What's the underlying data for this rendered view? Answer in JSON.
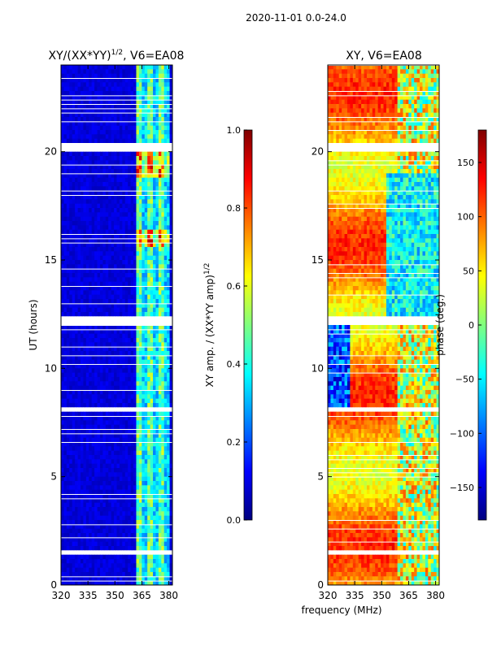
{
  "suptitle": "2020-11-01 0.0-24.0",
  "chart_data": [
    {
      "type": "heatmap",
      "title_prefix": "XY/(XX*YY)",
      "title_exponent": "1/2",
      "title_suffix": ", V6=EA08",
      "xlabel": "",
      "ylabel": "UT (hours)",
      "xlim": [
        320,
        382
      ],
      "ylim": [
        0,
        24
      ],
      "xticks": [
        320,
        335,
        350,
        365,
        380
      ],
      "yticks": [
        0,
        5,
        10,
        15,
        20
      ],
      "colorbar": {
        "label_prefix": "XY amp. / (XX*YY amp)",
        "label_exponent": "1/2",
        "range": [
          0.0,
          1.0
        ],
        "ticks": [
          "0.0",
          "0.2",
          "0.4",
          "0.6",
          "0.8",
          "1.0"
        ],
        "colormap": "jet"
      },
      "flagged_rows_hours": [
        1.5,
        8.1,
        12.2,
        20.2
      ],
      "bright_band_mhz": [
        362,
        380
      ]
    },
    {
      "type": "heatmap",
      "title": "XY, V6=EA08",
      "xlabel": "frequency (MHz)",
      "ylabel": "",
      "xlim": [
        320,
        382
      ],
      "ylim": [
        0,
        24
      ],
      "xticks": [
        320,
        335,
        350,
        365,
        380
      ],
      "yticks": [
        0,
        5,
        10,
        15,
        20
      ],
      "colorbar": {
        "label": "phase (deg.)",
        "range": [
          -180,
          180
        ],
        "ticks": [
          "−150",
          "−100",
          "−50",
          "0",
          "50",
          "100",
          "150"
        ],
        "tick_values": [
          -150,
          -100,
          -50,
          0,
          50,
          100,
          150
        ],
        "colormap": "jet"
      },
      "flagged_rows_hours": [
        1.5,
        8.1,
        12.2,
        20.2
      ]
    }
  ],
  "colors": {
    "jet": [
      "#00007f",
      "#0000ff",
      "#007fff",
      "#00ffff",
      "#7fff7f",
      "#ffff00",
      "#ff7f00",
      "#ff0000",
      "#7f0000"
    ]
  }
}
